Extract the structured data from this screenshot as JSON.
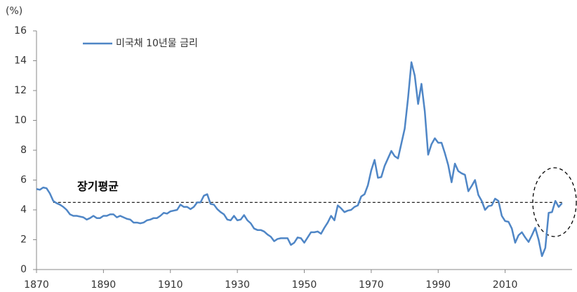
{
  "chart_data": {
    "type": "line",
    "y_label": "(%)",
    "x": [
      1870,
      1871,
      1872,
      1873,
      1874,
      1875,
      1876,
      1877,
      1878,
      1879,
      1880,
      1881,
      1882,
      1883,
      1884,
      1885,
      1886,
      1887,
      1888,
      1889,
      1890,
      1891,
      1892,
      1893,
      1894,
      1895,
      1896,
      1897,
      1898,
      1899,
      1900,
      1901,
      1902,
      1903,
      1904,
      1905,
      1906,
      1907,
      1908,
      1909,
      1910,
      1911,
      1912,
      1913,
      1914,
      1915,
      1916,
      1917,
      1918,
      1919,
      1920,
      1921,
      1922,
      1923,
      1924,
      1925,
      1926,
      1927,
      1928,
      1929,
      1930,
      1931,
      1932,
      1933,
      1934,
      1935,
      1936,
      1937,
      1938,
      1939,
      1940,
      1941,
      1942,
      1943,
      1944,
      1945,
      1946,
      1947,
      1948,
      1949,
      1950,
      1951,
      1952,
      1953,
      1954,
      1955,
      1956,
      1957,
      1958,
      1959,
      1960,
      1961,
      1962,
      1963,
      1964,
      1965,
      1966,
      1967,
      1968,
      1969,
      1970,
      1971,
      1972,
      1973,
      1974,
      1975,
      1976,
      1977,
      1978,
      1979,
      1980,
      1981,
      1982,
      1983,
      1984,
      1985,
      1986,
      1987,
      1988,
      1989,
      1990,
      1991,
      1992,
      1993,
      1994,
      1995,
      1996,
      1997,
      1998,
      1999,
      2000,
      2001,
      2002,
      2003,
      2004,
      2005,
      2006,
      2007,
      2008,
      2009,
      2010,
      2011,
      2012,
      2013,
      2014,
      2015,
      2016,
      2017,
      2018,
      2019,
      2020,
      2021,
      2022,
      2023,
      2024,
      2025,
      2026,
      2027
    ],
    "series": [
      {
        "name": "미국채 10년물 금리",
        "color": "#4f86c6",
        "values": [
          5.4,
          5.35,
          5.5,
          5.45,
          5.1,
          4.6,
          4.45,
          4.35,
          4.2,
          4.0,
          3.7,
          3.6,
          3.6,
          3.55,
          3.5,
          3.35,
          3.45,
          3.6,
          3.45,
          3.45,
          3.6,
          3.6,
          3.7,
          3.7,
          3.5,
          3.6,
          3.5,
          3.4,
          3.35,
          3.15,
          3.15,
          3.1,
          3.15,
          3.3,
          3.35,
          3.45,
          3.45,
          3.6,
          3.8,
          3.75,
          3.9,
          3.95,
          4.0,
          4.35,
          4.2,
          4.2,
          4.05,
          4.2,
          4.5,
          4.5,
          4.95,
          5.05,
          4.4,
          4.35,
          4.05,
          3.85,
          3.7,
          3.35,
          3.3,
          3.6,
          3.3,
          3.35,
          3.65,
          3.3,
          3.1,
          2.75,
          2.65,
          2.65,
          2.55,
          2.35,
          2.2,
          1.9,
          2.05,
          2.1,
          2.1,
          2.1,
          1.65,
          1.8,
          2.15,
          2.1,
          1.8,
          2.15,
          2.5,
          2.5,
          2.55,
          2.4,
          2.8,
          3.15,
          3.6,
          3.3,
          4.3,
          4.1,
          3.85,
          3.95,
          4.0,
          4.2,
          4.3,
          4.9,
          5.05,
          5.65,
          6.65,
          7.35,
          6.15,
          6.2,
          6.95,
          7.45,
          7.95,
          7.6,
          7.45,
          8.45,
          9.45,
          11.5,
          13.9,
          13.0,
          11.1,
          12.45,
          10.6,
          7.7,
          8.4,
          8.8,
          8.5,
          8.5,
          7.8,
          7.0,
          5.85,
          7.1,
          6.6,
          6.45,
          6.35,
          5.25,
          5.6,
          6.0,
          5.0,
          4.6,
          4.0,
          4.25,
          4.3,
          4.75,
          4.6,
          3.6,
          3.25,
          3.2,
          2.75,
          1.8,
          2.3,
          2.5,
          2.15,
          1.85,
          2.3,
          2.8,
          2.0,
          0.9,
          1.45,
          3.8,
          3.85,
          4.6,
          4.2,
          4.45
        ]
      }
    ],
    "reference_line": {
      "value": 4.5,
      "label": "장기평균",
      "x": [
        1875,
        2027
      ]
    },
    "xlim": [
      1870,
      2030
    ],
    "xticks": [
      1870,
      1890,
      1910,
      1930,
      1950,
      1970,
      1990,
      2010
    ],
    "ylim": [
      0,
      16
    ],
    "yticks": [
      0,
      2,
      4,
      6,
      8,
      10,
      12,
      14,
      16
    ],
    "legend": "top-left"
  }
}
